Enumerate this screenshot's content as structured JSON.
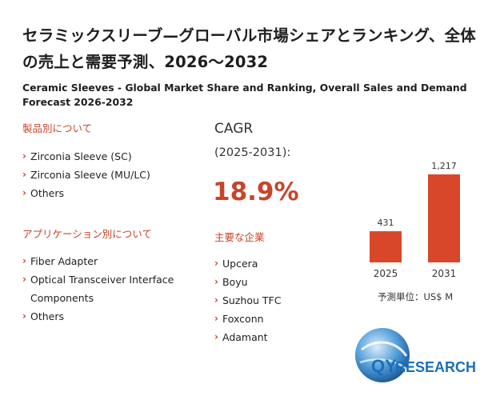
{
  "title": "セラミックスリーブ—グローバル市場シェアとランキング、全体の売上と需要予測、2026～2032",
  "subtitle": "Ceramic Sleeves - Global Market Share and Ranking, Overall Sales and Demand Forecast 2026-2032",
  "by_product": {
    "heading": "製品別について",
    "items": [
      "Zirconia Sleeve (SC)",
      "Zirconia Sleeve (MU/LC)",
      "Others"
    ]
  },
  "by_application": {
    "heading": "アプリケーション別について",
    "items": [
      "Fiber Adapter",
      "Optical Transceiver Interface Components",
      "Others"
    ]
  },
  "cagr": {
    "label": "CAGR",
    "period": "(2025-2031):",
    "value": "18.9%"
  },
  "companies": {
    "heading": "主要な企業",
    "items": [
      "Upcera",
      "Boyu",
      "Suzhou TFC",
      "Foxconn",
      "Adamant"
    ]
  },
  "chart_data": {
    "type": "bar",
    "categories": [
      "2025",
      "2031"
    ],
    "values": [
      431,
      1217
    ],
    "value_labels": [
      "431",
      "1,217"
    ],
    "bar_color": "#d9472a",
    "unit_label": "予測単位：US$ M"
  },
  "logo": {
    "text_q": "QY",
    "text_rest": "RESEARCH",
    "q_color": "#1a6fb8",
    "research_color": "#1a6fb8"
  },
  "colors": {
    "accent": "#c8442a"
  }
}
